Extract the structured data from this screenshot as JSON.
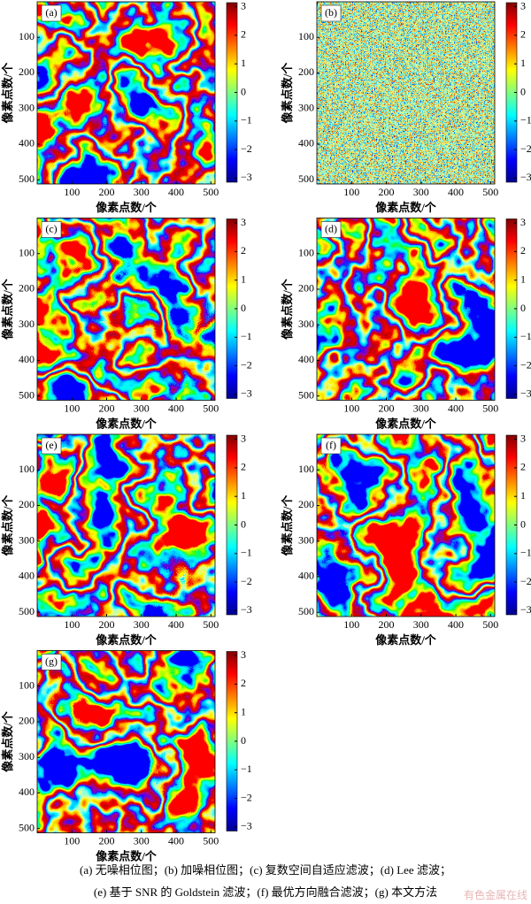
{
  "panels": [
    {
      "label": "(a)",
      "x_label": "像素点数/个",
      "y_label": "像素点数/个",
      "xlim": [
        0,
        512
      ],
      "ylim": [
        0,
        512
      ],
      "xticks": [
        100,
        200,
        300,
        400,
        500
      ],
      "yticks": [
        100,
        200,
        300,
        400,
        500
      ],
      "clim": [
        -3.1416,
        3.1416
      ],
      "colorbar_ticks": [
        3,
        2,
        1,
        0,
        {
          "value": -1,
          "label": "−1"
        },
        {
          "value": -2,
          "label": "−2"
        },
        {
          "value": -3,
          "label": "−3"
        }
      ]
    },
    {
      "label": "(b)",
      "x_label": "像素点数/个",
      "y_label": "像素点数/个",
      "xlim": [
        0,
        512
      ],
      "ylim": [
        0,
        512
      ],
      "xticks": [
        100,
        200,
        300,
        400,
        500
      ],
      "yticks": [
        100,
        200,
        300,
        400,
        500
      ],
      "clim": [
        -3.1416,
        3.1416
      ],
      "colorbar_ticks": [
        3,
        2,
        1,
        0,
        {
          "value": -1,
          "label": "−1"
        },
        {
          "value": -2,
          "label": "−2"
        },
        {
          "value": -3,
          "label": "−3"
        }
      ]
    },
    {
      "label": "(c)",
      "x_label": "像素点数/个",
      "y_label": "像素点数/个",
      "xlim": [
        0,
        512
      ],
      "ylim": [
        0,
        512
      ],
      "xticks": [
        100,
        200,
        300,
        400,
        500
      ],
      "yticks": [
        100,
        200,
        300,
        400,
        500
      ],
      "clim": [
        -3.1416,
        3.1416
      ],
      "colorbar_ticks": [
        3,
        2,
        1,
        0,
        {
          "value": -1,
          "label": "−1"
        },
        {
          "value": -2,
          "label": "−2"
        },
        {
          "value": -3,
          "label": "−3"
        }
      ]
    },
    {
      "label": "(d)",
      "x_label": "像素点数/个",
      "y_label": "像素点数/个",
      "xlim": [
        0,
        512
      ],
      "ylim": [
        0,
        512
      ],
      "xticks": [
        100,
        200,
        300,
        400,
        500
      ],
      "yticks": [
        100,
        200,
        300,
        400,
        500
      ],
      "clim": [
        -3.1416,
        3.1416
      ],
      "colorbar_ticks": [
        3,
        2,
        1,
        0,
        {
          "value": -1,
          "label": "−1"
        },
        {
          "value": -2,
          "label": "−2"
        },
        {
          "value": -3,
          "label": "−3"
        }
      ]
    },
    {
      "label": "(e)",
      "x_label": "像素点数/个",
      "y_label": "像素点数/个",
      "xlim": [
        0,
        512
      ],
      "ylim": [
        0,
        512
      ],
      "xticks": [
        100,
        200,
        300,
        400,
        500
      ],
      "yticks": [
        100,
        200,
        300,
        400,
        500
      ],
      "clim": [
        -3.1416,
        3.1416
      ],
      "colorbar_ticks": [
        3,
        2,
        1,
        0,
        {
          "value": -1,
          "label": "−1"
        },
        {
          "value": -2,
          "label": "−2"
        },
        {
          "value": -3,
          "label": "−3"
        }
      ]
    },
    {
      "label": "(f)",
      "x_label": "像素点数/个",
      "y_label": "像素点数/个",
      "xlim": [
        0,
        512
      ],
      "ylim": [
        0,
        512
      ],
      "xticks": [
        100,
        200,
        300,
        400,
        500
      ],
      "yticks": [
        100,
        200,
        300,
        400,
        500
      ],
      "clim": [
        -3.1416,
        3.1416
      ],
      "colorbar_ticks": [
        3,
        2,
        1,
        0,
        {
          "value": -1,
          "label": "−1"
        },
        {
          "value": -2,
          "label": "−2"
        },
        {
          "value": -3,
          "label": "−3"
        }
      ]
    },
    {
      "label": "(g)",
      "x_label": "像素点数/个",
      "y_label": "像素点数/个",
      "xlim": [
        0,
        512
      ],
      "ylim": [
        0,
        512
      ],
      "xticks": [
        100,
        200,
        300,
        400,
        500
      ],
      "yticks": [
        100,
        200,
        300,
        400,
        500
      ],
      "clim": [
        -3.1416,
        3.1416
      ],
      "colorbar_ticks": [
        3,
        2,
        1,
        0,
        {
          "value": -1,
          "label": "−1"
        },
        {
          "value": -2,
          "label": "−2"
        },
        {
          "value": -3,
          "label": "−3"
        }
      ]
    }
  ],
  "caption": [
    "(a) 无噪相位图；(b) 加噪相位图；(c) 复数空间自适应滤波；(d) Lee 滤波；",
    "(e) 基于 SNR 的 Goldstein 滤波；(f) 最优方向融合滤波；(g) 本文方法"
  ],
  "watermark": "有色金属在线"
}
